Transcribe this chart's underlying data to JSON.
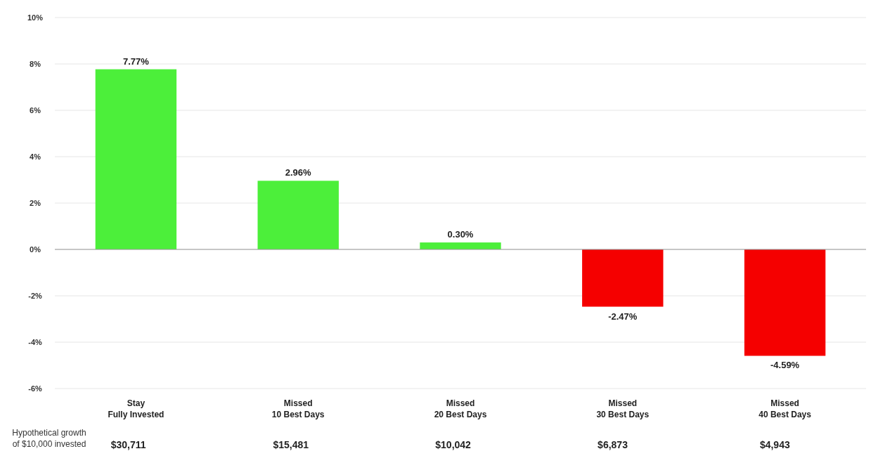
{
  "chart_data": {
    "type": "bar",
    "categories": [
      "Stay\nFully Invested",
      "Missed\n10 Best Days",
      "Missed\n20 Best Days",
      "Missed\n30 Best Days",
      "Missed\n40 Best Days"
    ],
    "values": [
      7.77,
      2.96,
      0.3,
      -2.47,
      -4.59
    ],
    "colors": [
      "#4cef3a",
      "#4cef3a",
      "#4cef3a",
      "#f50000",
      "#f50000"
    ],
    "value_labels": [
      "7.77%",
      "2.96%",
      "0.30%",
      "-2.47%",
      "-4.59%"
    ],
    "ylim": [
      -6,
      10
    ],
    "yticks": [
      {
        "value": -6,
        "label": "-6%"
      },
      {
        "value": -4,
        "label": "-4%"
      },
      {
        "value": -2,
        "label": "-2%"
      },
      {
        "value": 0,
        "label": "0%"
      },
      {
        "value": 2,
        "label": "2%"
      },
      {
        "value": 4,
        "label": "4%"
      },
      {
        "value": 6,
        "label": "6%"
      },
      {
        "value": 8,
        "label": "8%"
      },
      {
        "value": 10,
        "label": "10%"
      }
    ],
    "grid": "y",
    "annotations": [
      "Hypothetical growth\nof $10,000 invested",
      "$30,711",
      "$15,481",
      "$10,042",
      "$6,873",
      "$4,943"
    ]
  }
}
